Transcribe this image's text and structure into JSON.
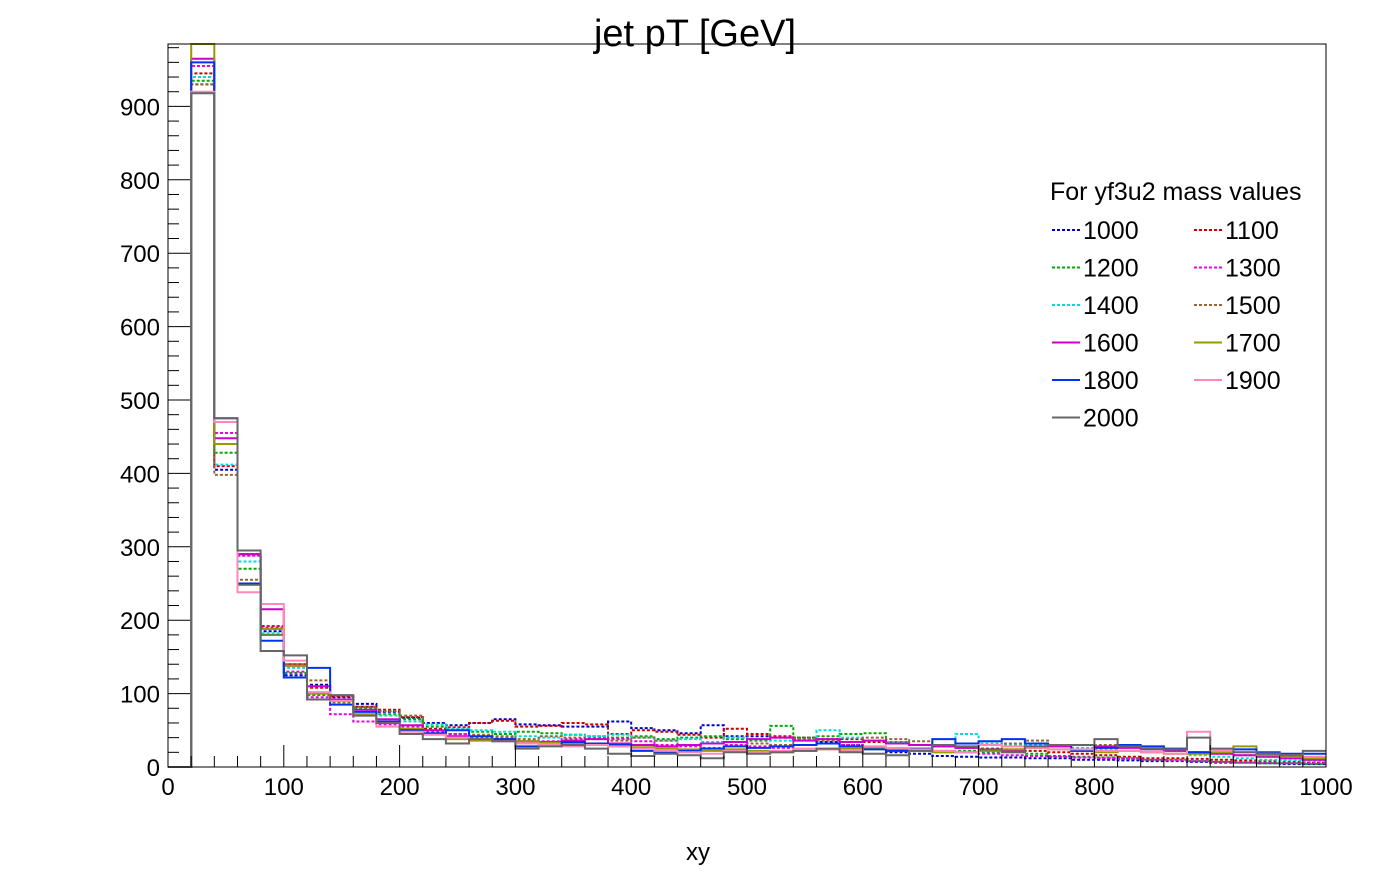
{
  "chart_data": {
    "type": "line",
    "title": "jet pT [GeV]",
    "xlabel": "xy",
    "ylabel": "",
    "xlim": [
      0,
      1000
    ],
    "ylim": [
      0,
      985
    ],
    "xticks": [
      0,
      100,
      200,
      300,
      400,
      500,
      600,
      700,
      800,
      900,
      1000
    ],
    "yticks": [
      0,
      100,
      200,
      300,
      400,
      500,
      600,
      700,
      800,
      900
    ],
    "bin_edges": [
      0,
      20,
      40,
      60,
      80,
      100,
      120,
      140,
      160,
      180,
      200,
      220,
      240,
      260,
      280,
      300,
      320,
      340,
      360,
      380,
      400,
      420,
      440,
      460,
      480,
      500,
      520,
      540,
      560,
      580,
      600,
      620,
      640,
      660,
      680,
      700,
      720,
      740,
      760,
      780,
      800,
      820,
      840,
      860,
      880,
      900,
      920,
      940,
      960,
      980,
      1000
    ],
    "legend": {
      "title": "For yf3u2 mass values",
      "placement": "top-right",
      "columns": 2
    },
    "grid": false,
    "series": [
      {
        "name": "1000",
        "color": "#0000cc",
        "dashed": true,
        "values": [
          0,
          930,
          405,
          290,
          185,
          125,
          112,
          95,
          86,
          75,
          67,
          60,
          57,
          60,
          65,
          58,
          57,
          55,
          55,
          62,
          53,
          50,
          46,
          57,
          42,
          42,
          40,
          38,
          34,
          30,
          25,
          20,
          18,
          15,
          14,
          13,
          13,
          12,
          12,
          10,
          10,
          9,
          8,
          8,
          7,
          6,
          6,
          5,
          4,
          4
        ]
      },
      {
        "name": "1100",
        "color": "#cc0000",
        "dashed": true,
        "values": [
          0,
          945,
          410,
          288,
          192,
          140,
          108,
          96,
          82,
          78,
          68,
          52,
          54,
          60,
          63,
          55,
          56,
          60,
          58,
          45,
          50,
          48,
          44,
          40,
          52,
          45,
          42,
          40,
          38,
          38,
          34,
          32,
          30,
          28,
          26,
          25,
          24,
          22,
          20,
          18,
          16,
          14,
          12,
          12,
          11,
          10,
          9,
          8,
          7,
          6
        ]
      },
      {
        "name": "1200",
        "color": "#00aa00",
        "dashed": true,
        "values": [
          0,
          935,
          428,
          270,
          180,
          128,
          98,
          92,
          80,
          72,
          65,
          55,
          45,
          48,
          45,
          48,
          46,
          44,
          42,
          40,
          42,
          38,
          40,
          42,
          38,
          36,
          56,
          40,
          42,
          45,
          46,
          34,
          30,
          20,
          22,
          20,
          20,
          18,
          15,
          14,
          13,
          12,
          10,
          10,
          8,
          7,
          6,
          5,
          5,
          4
        ]
      },
      {
        "name": "1300",
        "color": "#ee00ee",
        "dashed": true,
        "values": [
          0,
          955,
          455,
          288,
          190,
          130,
          95,
          72,
          62,
          58,
          55,
          48,
          45,
          40,
          40,
          35,
          35,
          38,
          40,
          38,
          35,
          30,
          28,
          26,
          30,
          28,
          26,
          30,
          32,
          30,
          28,
          25,
          24,
          22,
          20,
          18,
          16,
          15,
          14,
          13,
          12,
          11,
          10,
          9,
          8,
          7,
          6,
          6,
          5,
          5
        ]
      },
      {
        "name": "1400",
        "color": "#00dddd",
        "dashed": true,
        "values": [
          0,
          940,
          412,
          280,
          182,
          135,
          110,
          88,
          78,
          70,
          62,
          58,
          52,
          50,
          48,
          42,
          40,
          44,
          42,
          44,
          40,
          36,
          38,
          34,
          40,
          38,
          36,
          38,
          50,
          40,
          36,
          34,
          30,
          28,
          45,
          32,
          30,
          30,
          28,
          26,
          24,
          22,
          20,
          18,
          16,
          14,
          12,
          10,
          9,
          8
        ]
      },
      {
        "name": "1500",
        "color": "#996633",
        "dashed": true,
        "values": [
          0,
          930,
          398,
          255,
          180,
          140,
          118,
          88,
          82,
          76,
          70,
          50,
          42,
          44,
          42,
          38,
          42,
          40,
          38,
          36,
          40,
          36,
          30,
          32,
          34,
          32,
          30,
          38,
          36,
          34,
          40,
          38,
          35,
          30,
          32,
          30,
          32,
          36,
          28,
          30,
          30,
          28,
          24,
          22,
          20,
          18,
          16,
          14,
          12,
          10
        ]
      },
      {
        "name": "1600",
        "color": "#cc00cc",
        "dashed": false,
        "values": [
          0,
          965,
          448,
          290,
          215,
          138,
          110,
          92,
          78,
          65,
          57,
          50,
          42,
          38,
          36,
          35,
          34,
          36,
          38,
          32,
          30,
          28,
          30,
          32,
          34,
          38,
          40,
          36,
          38,
          34,
          36,
          32,
          30,
          28,
          26,
          24,
          22,
          26,
          28,
          30,
          28,
          26,
          24,
          22,
          20,
          18,
          16,
          14,
          12,
          10
        ]
      },
      {
        "name": "1700",
        "color": "#999900",
        "dashed": false,
        "values": [
          0,
          990,
          440,
          248,
          188,
          138,
          100,
          90,
          72,
          62,
          52,
          45,
          38,
          36,
          38,
          35,
          33,
          32,
          30,
          28,
          27,
          25,
          24,
          22,
          24,
          22,
          20,
          22,
          24,
          25,
          26,
          24,
          22,
          20,
          20,
          22,
          24,
          26,
          24,
          22,
          20,
          22,
          20,
          18,
          18,
          20,
          28,
          16,
          14,
          12
        ]
      },
      {
        "name": "1800",
        "color": "#0033ee",
        "dashed": false,
        "values": [
          0,
          960,
          475,
          250,
          172,
          122,
          135,
          85,
          75,
          62,
          50,
          46,
          50,
          42,
          38,
          28,
          30,
          34,
          32,
          30,
          22,
          20,
          22,
          25,
          28,
          26,
          28,
          30,
          32,
          28,
          24,
          22,
          25,
          38,
          32,
          35,
          38,
          32,
          30,
          22,
          26,
          30,
          28,
          25,
          20,
          22,
          24,
          20,
          18,
          18
        ]
      },
      {
        "name": "1900",
        "color": "#ff88bb",
        "dashed": false,
        "values": [
          0,
          920,
          470,
          238,
          222,
          145,
          102,
          90,
          70,
          55,
          48,
          44,
          40,
          38,
          35,
          32,
          30,
          28,
          30,
          28,
          25,
          22,
          20,
          18,
          22,
          20,
          22,
          25,
          24,
          22,
          28,
          26,
          24,
          22,
          20,
          30,
          28,
          26,
          24,
          24,
          22,
          22,
          20,
          18,
          48,
          22,
          20,
          18,
          16,
          14
        ]
      },
      {
        "name": "2000",
        "color": "#666666",
        "dashed": false,
        "values": [
          0,
          918,
          475,
          295,
          158,
          152,
          92,
          98,
          70,
          60,
          45,
          38,
          32,
          38,
          35,
          25,
          28,
          30,
          25,
          18,
          15,
          18,
          16,
          12,
          20,
          18,
          20,
          22,
          25,
          20,
          18,
          16,
          22,
          30,
          28,
          24,
          20,
          28,
          30,
          30,
          38,
          28,
          25,
          24,
          40,
          25,
          20,
          18,
          16,
          22
        ]
      }
    ]
  }
}
